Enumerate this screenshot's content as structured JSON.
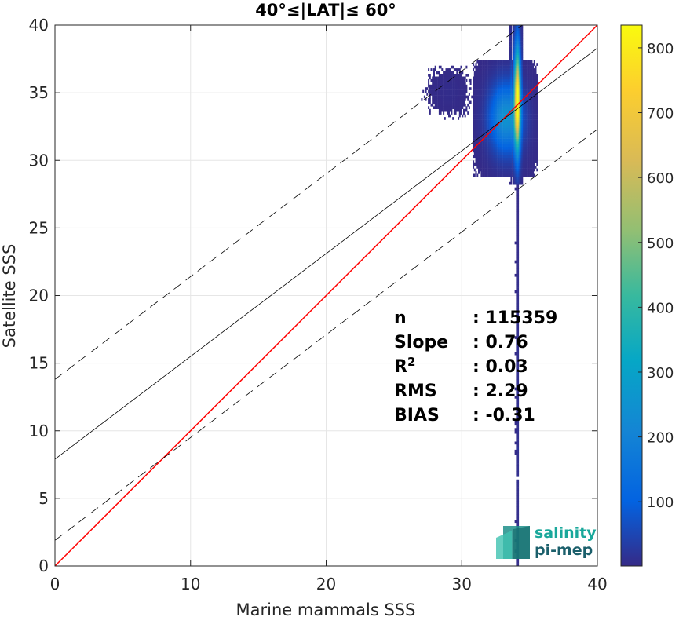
{
  "chart_data": {
    "type": "heatmap",
    "title": "40°≤|LAT|≤ 60°",
    "xlabel": "Marine mammals SSS",
    "ylabel": "Satellite SSS",
    "xlim": [
      0,
      40
    ],
    "ylim": [
      0,
      40
    ],
    "xticks": [
      "0",
      "10",
      "20",
      "30",
      "40"
    ],
    "yticks": [
      "0",
      "5",
      "10",
      "15",
      "20",
      "25",
      "30",
      "35",
      "40"
    ],
    "grid": true,
    "colorbar": {
      "range": [
        1,
        835
      ],
      "ticks": [
        "100",
        "200",
        "300",
        "400",
        "500",
        "600",
        "700",
        "800"
      ],
      "colormap": "parula"
    },
    "density_clusters": [
      {
        "x_center": 33.2,
        "y_center": 33.0,
        "x_spread": 0.8,
        "y_spread": 1.7,
        "peak_count": 250
      },
      {
        "x_center": 34.0,
        "y_center": 34.5,
        "x_spread": 0.15,
        "y_spread": 2.5,
        "peak_count": 835
      },
      {
        "x_center": 34.0,
        "y_center": 12.0,
        "x_spread": 0.05,
        "y_spread": 9.0,
        "peak_count": 15
      },
      {
        "x_center": 29.0,
        "y_center": 35.0,
        "x_spread": 0.7,
        "y_spread": 0.8,
        "peak_count": 5
      }
    ],
    "series": [
      {
        "type": "identity",
        "slope": 1,
        "intercept": 0,
        "color": "#ff0000"
      },
      {
        "type": "regression",
        "slope": 0.76,
        "intercept": 7.9,
        "color": "#000000"
      },
      {
        "type": "regression_upper",
        "slope": 0.76,
        "intercept": 13.8,
        "color": "#000000",
        "dashed": true
      },
      {
        "type": "regression_lower",
        "slope": 0.76,
        "intercept": 1.9,
        "color": "#000000",
        "dashed": true
      }
    ],
    "stats": [
      {
        "label": "n",
        "value": ": 115359"
      },
      {
        "label": "Slope",
        "value": ": 0.76"
      },
      {
        "label": "R",
        "sup": "2",
        "value": ": 0.03"
      },
      {
        "label": "RMS",
        "value": ": 2.29"
      },
      {
        "label": "BIAS",
        "value": ": -0.31"
      }
    ]
  },
  "logo": {
    "line1": "salinity",
    "line2": "pi-mep",
    "color1": "#1aa89b",
    "color2": "#1b5f6b"
  }
}
